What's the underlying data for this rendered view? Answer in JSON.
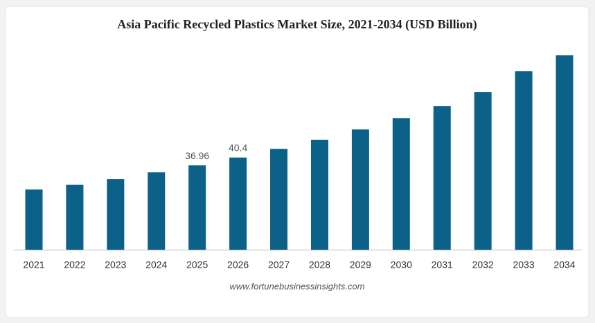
{
  "chart_data": {
    "type": "bar",
    "title": "Asia Pacific Recycled Plastics Market Size, 2021-2034 (USD Billion)",
    "categories": [
      "2021",
      "2022",
      "2023",
      "2024",
      "2025",
      "2026",
      "2027",
      "2028",
      "2029",
      "2030",
      "2031",
      "2032",
      "2033",
      "2034"
    ],
    "values": [
      26.4,
      28.5,
      30.9,
      33.9,
      36.96,
      40.4,
      44.2,
      48.2,
      52.7,
      57.6,
      63.0,
      69.1,
      78.2,
      85.2
    ],
    "value_labels": [
      null,
      null,
      null,
      null,
      "36.96",
      "40.4",
      null,
      null,
      null,
      null,
      null,
      null,
      null,
      null
    ],
    "color": "#0b6187",
    "source": "www.fortunebusinessinsights.com"
  }
}
